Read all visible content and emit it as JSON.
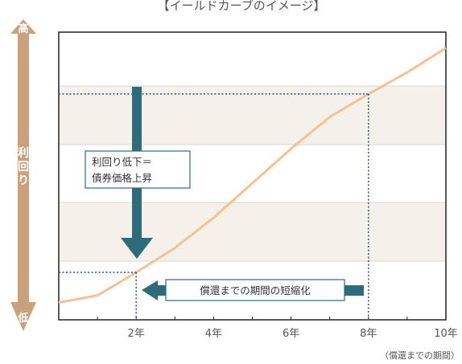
{
  "chart_data": {
    "type": "line",
    "title": "【イールドカーブのイメージ】",
    "y_axis": {
      "label": "利回り",
      "high_label": "高",
      "low_label": "低"
    },
    "x_axis": {
      "label": "（償還までの期間）",
      "tick_labels": [
        "2年",
        "4年",
        "6年",
        "8年",
        "10年"
      ],
      "ticks": [
        2,
        4,
        6,
        8,
        10
      ],
      "range": [
        0,
        10
      ]
    },
    "ylim": [
      0,
      10
    ],
    "grid": true,
    "series": [
      {
        "x": [
          0,
          1,
          2,
          3,
          4,
          5,
          6,
          7,
          8,
          9,
          10
        ],
        "y": [
          0.6,
          0.85,
          1.65,
          2.5,
          3.55,
          4.75,
          5.95,
          7.05,
          7.85,
          8.6,
          9.45
        ]
      }
    ],
    "annotations": {
      "yield_box_text": [
        "利回り低下＝",
        "債券価格上昇"
      ],
      "period_box_text": "償還までの期間の短縮化",
      "marker_start": {
        "x": 8,
        "y": 7.85
      },
      "marker_end": {
        "x": 2,
        "y": 1.65
      }
    },
    "colors": {
      "line": "#f4c194",
      "axis_arrow": "#c9a17c",
      "annotation_arrow": "#2e6b7b",
      "guide": "#3b55a6",
      "band": "#f3f1ea",
      "box_border": "#2e6b7b"
    }
  }
}
